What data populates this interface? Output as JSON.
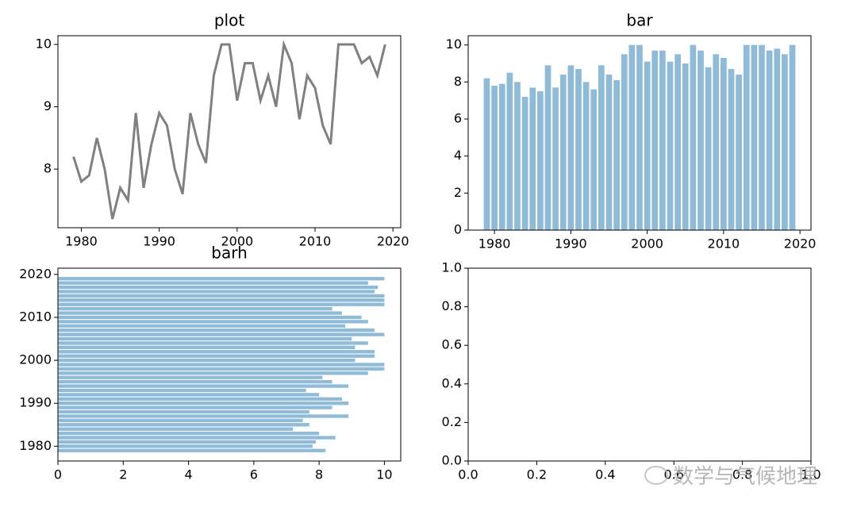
{
  "chart_data": [
    {
      "type": "line",
      "title": "plot",
      "color": "#808080",
      "x": [
        1979,
        1980,
        1981,
        1982,
        1983,
        1984,
        1985,
        1986,
        1987,
        1988,
        1989,
        1990,
        1991,
        1992,
        1993,
        1994,
        1995,
        1996,
        1997,
        1998,
        1999,
        2000,
        2001,
        2002,
        2003,
        2004,
        2005,
        2006,
        2007,
        2008,
        2009,
        2010,
        2011,
        2012,
        2013,
        2014,
        2015,
        2016,
        2017,
        2018,
        2019
      ],
      "values": [
        8.2,
        7.8,
        7.9,
        8.5,
        8.0,
        7.2,
        7.7,
        7.5,
        8.9,
        7.7,
        8.4,
        8.9,
        8.7,
        8.0,
        7.6,
        8.9,
        8.4,
        8.1,
        9.5,
        10.0,
        10.0,
        9.1,
        9.7,
        9.7,
        9.1,
        9.5,
        9.0,
        10.0,
        9.7,
        8.8,
        9.5,
        9.3,
        8.7,
        8.4,
        10.0,
        10.0,
        10.0,
        9.7,
        9.8,
        9.5,
        10.0
      ],
      "xlim": [
        1977,
        2021
      ],
      "ylim": [
        7.06,
        10.14
      ],
      "xticks": [
        1980,
        1990,
        2000,
        2010,
        2020
      ],
      "yticks": [
        8,
        9,
        10
      ]
    },
    {
      "type": "bar",
      "title": "bar",
      "color": "#8fbbd9",
      "x": [
        1979,
        1980,
        1981,
        1982,
        1983,
        1984,
        1985,
        1986,
        1987,
        1988,
        1989,
        1990,
        1991,
        1992,
        1993,
        1994,
        1995,
        1996,
        1997,
        1998,
        1999,
        2000,
        2001,
        2002,
        2003,
        2004,
        2005,
        2006,
        2007,
        2008,
        2009,
        2010,
        2011,
        2012,
        2013,
        2014,
        2015,
        2016,
        2017,
        2018,
        2019
      ],
      "values": [
        8.2,
        7.8,
        7.9,
        8.5,
        8.0,
        7.2,
        7.7,
        7.5,
        8.9,
        7.7,
        8.4,
        8.9,
        8.7,
        8.0,
        7.6,
        8.9,
        8.4,
        8.1,
        9.5,
        10.0,
        10.0,
        9.1,
        9.7,
        9.7,
        9.1,
        9.5,
        9.0,
        10.0,
        9.7,
        8.8,
        9.5,
        9.3,
        8.7,
        8.4,
        10.0,
        10.0,
        10.0,
        9.7,
        9.8,
        9.5,
        10.0
      ],
      "xlim": [
        1976.56,
        2021.44
      ],
      "ylim": [
        0,
        10.5
      ],
      "xticks": [
        1980,
        1990,
        2000,
        2010,
        2020
      ],
      "yticks": [
        0,
        2,
        4,
        6,
        8,
        10
      ]
    },
    {
      "type": "barh",
      "title": "barh",
      "color": "#8fbbd9",
      "x": [
        1979,
        1980,
        1981,
        1982,
        1983,
        1984,
        1985,
        1986,
        1987,
        1988,
        1989,
        1990,
        1991,
        1992,
        1993,
        1994,
        1995,
        1996,
        1997,
        1998,
        1999,
        2000,
        2001,
        2002,
        2003,
        2004,
        2005,
        2006,
        2007,
        2008,
        2009,
        2010,
        2011,
        2012,
        2013,
        2014,
        2015,
        2016,
        2017,
        2018,
        2019
      ],
      "values": [
        8.2,
        7.8,
        7.9,
        8.5,
        8.0,
        7.2,
        7.7,
        7.5,
        8.9,
        7.7,
        8.4,
        8.9,
        8.7,
        8.0,
        7.6,
        8.9,
        8.4,
        8.1,
        9.5,
        10.0,
        10.0,
        9.1,
        9.7,
        9.7,
        9.1,
        9.5,
        9.0,
        10.0,
        9.7,
        8.8,
        9.5,
        9.3,
        8.7,
        8.4,
        10.0,
        10.0,
        10.0,
        9.7,
        9.8,
        9.5,
        10.0
      ],
      "xlim": [
        0,
        10.5
      ],
      "ylim": [
        1976.56,
        2021.44
      ],
      "xticks": [
        0,
        2,
        4,
        6,
        8,
        10
      ],
      "yticks": [
        1980,
        1990,
        2000,
        2010,
        2020
      ]
    },
    {
      "type": "empty",
      "xlim": [
        0,
        1
      ],
      "ylim": [
        0,
        1
      ],
      "xticks": [
        {
          "value": 0,
          "label": "0.0"
        },
        {
          "value": 0.2,
          "label": "0.2"
        },
        {
          "value": 0.4,
          "label": "0.4"
        },
        {
          "value": 0.6,
          "label": "0.6"
        },
        {
          "value": 0.8,
          "label": "0.8"
        },
        {
          "value": 1,
          "label": "1.0"
        }
      ],
      "yticks": [
        {
          "value": 0,
          "label": "0.0"
        },
        {
          "value": 0.2,
          "label": "0.2"
        },
        {
          "value": 0.4,
          "label": "0.4"
        },
        {
          "value": 0.6,
          "label": "0.6"
        },
        {
          "value": 0.8,
          "label": "0.8"
        },
        {
          "value": 1,
          "label": "1.0"
        }
      ]
    }
  ],
  "watermark": "数学与气候地理"
}
